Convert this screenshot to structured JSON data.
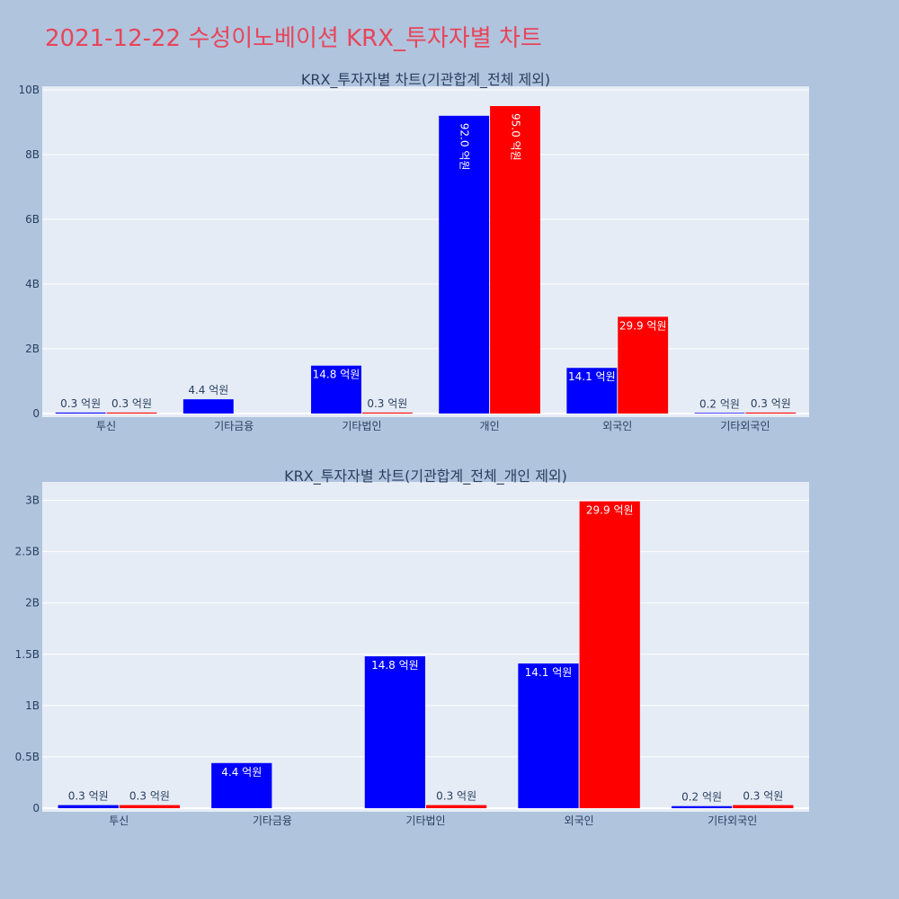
{
  "page": {
    "title": "2021-12-22 수성이노베이션 KRX_투자자별 차트"
  },
  "colors": {
    "blue": "#0000ff",
    "red": "#ff0000",
    "title": "#e8455a",
    "plot_bg": "#e5ecf6",
    "page_bg": "#b0c4de"
  },
  "chart_data": [
    {
      "type": "bar",
      "title": "KRX_투자자별 차트(기관합계_전체 제외)",
      "categories": [
        "투신",
        "기타금융",
        "기타법인",
        "개인",
        "외국인",
        "기타외국인"
      ],
      "ylim": [
        0,
        10000000000
      ],
      "yticks": [
        {
          "value": 0,
          "label": "0"
        },
        {
          "value": 2000000000,
          "label": "2B"
        },
        {
          "value": 4000000000,
          "label": "4B"
        },
        {
          "value": 6000000000,
          "label": "6B"
        },
        {
          "value": 8000000000,
          "label": "8B"
        },
        {
          "value": 10000000000,
          "label": "10B"
        }
      ],
      "grid": true,
      "series": [
        {
          "color": "#0000ff",
          "values": [
            30000000,
            440000000,
            1480000000,
            9200000000,
            1410000000,
            20000000
          ],
          "labels": [
            "0.3 억원",
            "4.4 억원",
            "14.8 억원",
            "92.0 억원",
            "14.1 억원",
            "0.2 억원"
          ]
        },
        {
          "color": "#ff0000",
          "values": [
            30000000,
            null,
            30000000,
            9500000000,
            2990000000,
            30000000
          ],
          "labels": [
            "0.3 억원",
            "",
            "0.3 억원",
            "95.0 억원",
            "29.9 억원",
            "0.3 억원"
          ]
        }
      ]
    },
    {
      "type": "bar",
      "title": "KRX_투자자별 차트(기관합계_전체_개인 제외)",
      "categories": [
        "투신",
        "기타금융",
        "기타법인",
        "외국인",
        "기타외국인"
      ],
      "ylim": [
        0,
        3180000000
      ],
      "yticks": [
        {
          "value": 0,
          "label": "0"
        },
        {
          "value": 500000000,
          "label": "0.5B"
        },
        {
          "value": 1000000000,
          "label": "1B"
        },
        {
          "value": 1500000000,
          "label": "1.5B"
        },
        {
          "value": 2000000000,
          "label": "2B"
        },
        {
          "value": 2500000000,
          "label": "2.5B"
        },
        {
          "value": 3000000000,
          "label": "3B"
        }
      ],
      "grid": true,
      "series": [
        {
          "color": "#0000ff",
          "values": [
            30000000,
            440000000,
            1480000000,
            1410000000,
            20000000
          ],
          "labels": [
            "0.3 억원",
            "4.4 억원",
            "14.8 억원",
            "14.1 억원",
            "0.2 억원"
          ]
        },
        {
          "color": "#ff0000",
          "values": [
            30000000,
            null,
            30000000,
            2990000000,
            30000000
          ],
          "labels": [
            "0.3 억원",
            "",
            "0.3 억원",
            "29.9 억원",
            "0.3 억원"
          ]
        }
      ]
    }
  ]
}
